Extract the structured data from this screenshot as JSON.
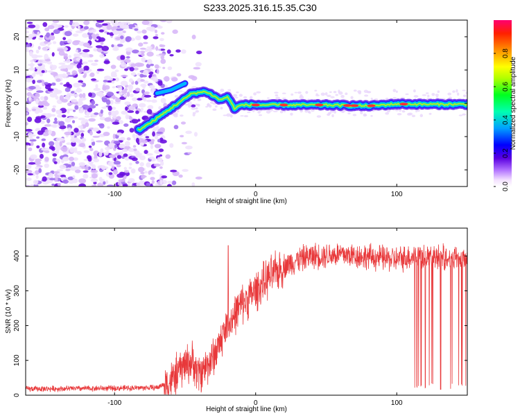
{
  "figure_title": "S233.2025.316.15.35.C30",
  "chart_data": [
    {
      "type": "heatmap",
      "title": "S233.2025.316.15.35.C30",
      "xlabel": "Height of straight line (km)",
      "ylabel": "Frequency (Hz)",
      "xlim": [
        -163,
        150
      ],
      "ylim": [
        -25,
        25
      ],
      "xticks": [
        -100,
        0,
        100
      ],
      "yticks": [
        -20,
        -10,
        0,
        10,
        20
      ],
      "xtick_labels": [
        "-100",
        "0",
        "100"
      ],
      "ytick_labels": [
        "-20",
        "-10",
        "0",
        "10",
        "20"
      ],
      "colorbar": {
        "label": "Normalized spectral amplitude",
        "range": [
          0.0,
          1.0
        ],
        "ticks": [
          0.0,
          0.2,
          0.4,
          0.6,
          0.8
        ],
        "tick_labels": [
          "0.0",
          "0.2",
          "0.4",
          "0.6",
          "0.8"
        ]
      },
      "ridge": {
        "description_points_x": [
          -83,
          -75,
          -65,
          -55,
          -45,
          -35,
          -25,
          -20,
          -15,
          -10,
          0,
          20,
          50,
          80,
          100,
          120,
          150
        ],
        "frequency_hz": [
          -8,
          -6,
          -3,
          0,
          3,
          3.5,
          1,
          2,
          -1.5,
          -0.5,
          -0.5,
          -0.5,
          -0.5,
          -0.8,
          -0.2,
          -0.3,
          -0.3
        ],
        "upper_branch_x": [
          -70,
          -60,
          -55,
          -50
        ],
        "upper_branch_hz": [
          3,
          4,
          5,
          6
        ]
      },
      "noise_region_x": [
        -163,
        -65
      ]
    },
    {
      "type": "line",
      "title": "",
      "xlabel": "Height of straight line (km)",
      "ylabel": "SNR (10 * v/v)",
      "xlim": [
        -163,
        150
      ],
      "ylim": [
        0,
        480
      ],
      "xticks": [
        -100,
        0,
        100
      ],
      "yticks": [
        0,
        100,
        200,
        300,
        400
      ],
      "xtick_labels": [
        "-100",
        "0",
        "100"
      ],
      "ytick_labels": [
        "0",
        "100",
        "200",
        "300",
        "400"
      ],
      "series": [
        {
          "name": "SNR",
          "color": "#e8383a",
          "trend_x": [
            -163,
            -100,
            -70,
            -60,
            -50,
            -45,
            -40,
            -30,
            -20,
            -10,
            0,
            10,
            20,
            30,
            40,
            60,
            100,
            112,
            150
          ],
          "trend_y": [
            18,
            20,
            22,
            40,
            90,
            95,
            60,
            110,
            200,
            260,
            300,
            340,
            370,
            390,
            400,
            405,
            390,
            400,
            395
          ],
          "dropouts_x_range": [
            112,
            150
          ],
          "dropout_min": 15,
          "peak_value": 450
        }
      ]
    }
  ],
  "colors": {
    "series_red": "#e8383a",
    "noise_purple": "#6a00d8",
    "axis": "#000000"
  }
}
